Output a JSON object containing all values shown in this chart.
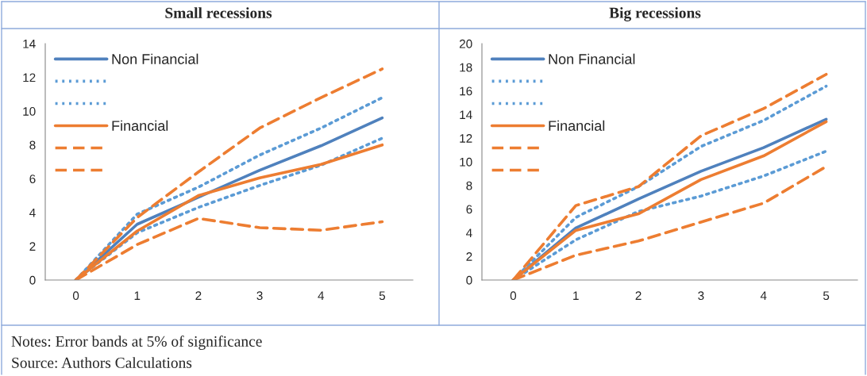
{
  "chart_data": [
    {
      "type": "line",
      "title": "Small recessions",
      "categories": [
        "0",
        "1",
        "2",
        "3",
        "4",
        "5"
      ],
      "ylim": [
        0,
        14
      ],
      "yticks": [
        0,
        2,
        4,
        6,
        8,
        10,
        12,
        14
      ],
      "grid": false,
      "legend": "top left",
      "marker": "none",
      "series": [
        {
          "name": "Non Financial",
          "color": "#4f81bd",
          "line_style": "solid",
          "values": [
            0,
            3.3,
            4.9,
            6.5,
            7.95,
            9.6
          ]
        },
        {
          "color": "#5b9bd5",
          "line_style": "dotted",
          "values": [
            0,
            3.9,
            5.5,
            7.4,
            9.0,
            10.8
          ]
        },
        {
          "color": "#5b9bd5",
          "line_style": "dotted",
          "values": [
            0,
            2.8,
            4.3,
            5.6,
            6.8,
            8.4
          ]
        },
        {
          "name": "Financial",
          "color": "#ed7d31",
          "line_style": "solid",
          "values": [
            0,
            2.9,
            5.0,
            6.05,
            6.85,
            8.0
          ]
        },
        {
          "color": "#ed7d31",
          "line_style": "dashed",
          "values": [
            0,
            3.7,
            6.4,
            9.0,
            10.8,
            12.5
          ]
        },
        {
          "color": "#ed7d31",
          "line_style": "dashed",
          "values": [
            0,
            2.1,
            3.65,
            3.1,
            2.95,
            3.45
          ]
        }
      ],
      "annotations": [
        "Notes: Error bands at 5% of significance",
        "Source: Authors Calculations"
      ]
    },
    {
      "type": "line",
      "title": "Big recessions",
      "categories": [
        "0",
        "1",
        "2",
        "3",
        "4",
        "5"
      ],
      "ylim": [
        0,
        20
      ],
      "yticks": [
        0,
        2,
        4,
        6,
        8,
        10,
        12,
        14,
        16,
        18,
        20
      ],
      "grid": false,
      "legend": "top left",
      "marker": "none",
      "series": [
        {
          "name": "Non Financial",
          "color": "#4f81bd",
          "line_style": "solid",
          "values": [
            0,
            4.4,
            6.85,
            9.2,
            11.2,
            13.6
          ]
        },
        {
          "color": "#5b9bd5",
          "line_style": "dotted",
          "values": [
            0,
            5.3,
            7.9,
            11.3,
            13.5,
            16.4
          ]
        },
        {
          "color": "#5b9bd5",
          "line_style": "dotted",
          "values": [
            0,
            3.4,
            5.8,
            7.1,
            8.8,
            10.9
          ]
        },
        {
          "name": "Financial",
          "color": "#ed7d31",
          "line_style": "solid",
          "values": [
            0,
            4.2,
            5.6,
            8.5,
            10.5,
            13.4
          ]
        },
        {
          "color": "#ed7d31",
          "line_style": "dashed",
          "values": [
            0,
            6.3,
            7.9,
            12.2,
            14.5,
            17.4
          ]
        },
        {
          "color": "#ed7d31",
          "line_style": "dashed",
          "values": [
            0,
            2.1,
            3.3,
            4.9,
            6.5,
            9.6
          ]
        }
      ]
    }
  ]
}
